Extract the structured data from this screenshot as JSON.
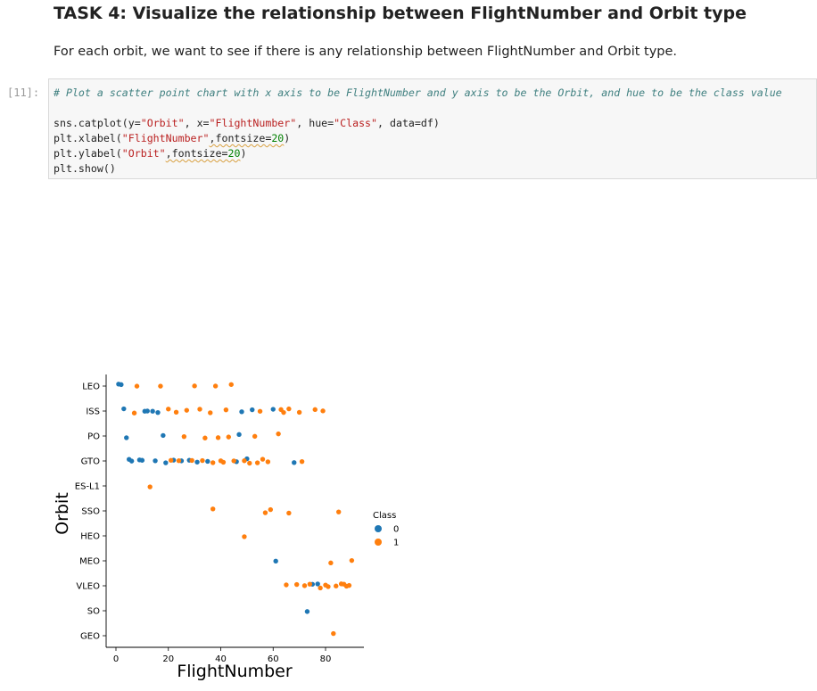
{
  "heading": "TASK 4: Visualize the relationship between FlightNumber and Orbit type",
  "paragraph": "For each orbit, we want to see if there is any relationship between FlightNumber and Orbit type.",
  "cell": {
    "prompt": "[11]:",
    "comment": "# Plot a scatter point chart with x axis to be FlightNumber and y axis to be the Orbit, and hue to be the class value",
    "line1": {
      "a": "sns.catplot(y=",
      "b": "\"Orbit\"",
      "c": ", x=",
      "d": "\"FlightNumber\"",
      "e": ", hue=",
      "f": "\"Class\"",
      "g": ", data=df)"
    },
    "line2": {
      "a": "plt.xlabel(",
      "b": "\"FlightNumber\"",
      "c": ",fontsize=",
      "d": "20",
      "e": ")"
    },
    "line3": {
      "a": "plt.ylabel(",
      "b": "\"Orbit\"",
      "c": ",fontsize=",
      "d": "20",
      "e": ")"
    },
    "line4": "plt.show()"
  },
  "colors": {
    "class0": "#1f77b4",
    "class1": "#ff7f0e"
  },
  "chart_data": {
    "type": "scatter",
    "xlabel": "FlightNumber",
    "ylabel": "Orbit",
    "xlim": [
      -4,
      94
    ],
    "xticks": [
      0,
      20,
      40,
      60,
      80
    ],
    "categories": [
      "LEO",
      "ISS",
      "PO",
      "GTO",
      "ES-L1",
      "SSO",
      "HEO",
      "MEO",
      "VLEO",
      "SO",
      "GEO"
    ],
    "legend": {
      "title": "Class",
      "entries": [
        "0",
        "1"
      ],
      "placement": "right"
    },
    "series": [
      {
        "name": "0",
        "points": [
          [
            "LEO",
            1
          ],
          [
            "LEO",
            2
          ],
          [
            "ISS",
            3
          ],
          [
            "ISS",
            11
          ],
          [
            "ISS",
            12
          ],
          [
            "ISS",
            14
          ],
          [
            "ISS",
            16
          ],
          [
            "ISS",
            48
          ],
          [
            "ISS",
            52
          ],
          [
            "ISS",
            60
          ],
          [
            "PO",
            4
          ],
          [
            "PO",
            18
          ],
          [
            "PO",
            47
          ],
          [
            "GTO",
            5
          ],
          [
            "GTO",
            6
          ],
          [
            "GTO",
            9
          ],
          [
            "GTO",
            10
          ],
          [
            "GTO",
            15
          ],
          [
            "GTO",
            19
          ],
          [
            "GTO",
            22
          ],
          [
            "GTO",
            25
          ],
          [
            "GTO",
            28
          ],
          [
            "GTO",
            31
          ],
          [
            "GTO",
            35
          ],
          [
            "GTO",
            46
          ],
          [
            "GTO",
            50
          ],
          [
            "GTO",
            68
          ],
          [
            "MEO",
            61
          ],
          [
            "VLEO",
            75
          ],
          [
            "VLEO",
            77
          ],
          [
            "SO",
            73
          ]
        ]
      },
      {
        "name": "1",
        "points": [
          [
            "LEO",
            8
          ],
          [
            "LEO",
            17
          ],
          [
            "LEO",
            30
          ],
          [
            "LEO",
            38
          ],
          [
            "LEO",
            44
          ],
          [
            "ISS",
            7
          ],
          [
            "ISS",
            20
          ],
          [
            "ISS",
            23
          ],
          [
            "ISS",
            27
          ],
          [
            "ISS",
            32
          ],
          [
            "ISS",
            36
          ],
          [
            "ISS",
            42
          ],
          [
            "ISS",
            55
          ],
          [
            "ISS",
            63
          ],
          [
            "ISS",
            64
          ],
          [
            "ISS",
            66
          ],
          [
            "ISS",
            70
          ],
          [
            "ISS",
            76
          ],
          [
            "ISS",
            79
          ],
          [
            "PO",
            26
          ],
          [
            "PO",
            34
          ],
          [
            "PO",
            39
          ],
          [
            "PO",
            43
          ],
          [
            "PO",
            53
          ],
          [
            "PO",
            62
          ],
          [
            "GTO",
            21
          ],
          [
            "GTO",
            24
          ],
          [
            "GTO",
            29
          ],
          [
            "GTO",
            33
          ],
          [
            "GTO",
            37
          ],
          [
            "GTO",
            40
          ],
          [
            "GTO",
            41
          ],
          [
            "GTO",
            45
          ],
          [
            "GTO",
            49
          ],
          [
            "GTO",
            51
          ],
          [
            "GTO",
            54
          ],
          [
            "GTO",
            56
          ],
          [
            "GTO",
            58
          ],
          [
            "GTO",
            71
          ],
          [
            "ES-L1",
            13
          ],
          [
            "SSO",
            37
          ],
          [
            "SSO",
            57
          ],
          [
            "SSO",
            59
          ],
          [
            "SSO",
            66
          ],
          [
            "SSO",
            85
          ],
          [
            "HEO",
            49
          ],
          [
            "MEO",
            82
          ],
          [
            "MEO",
            90
          ],
          [
            "VLEO",
            65
          ],
          [
            "VLEO",
            69
          ],
          [
            "VLEO",
            72
          ],
          [
            "VLEO",
            74
          ],
          [
            "VLEO",
            78
          ],
          [
            "VLEO",
            80
          ],
          [
            "VLEO",
            81
          ],
          [
            "VLEO",
            84
          ],
          [
            "VLEO",
            86
          ],
          [
            "VLEO",
            87
          ],
          [
            "VLEO",
            88
          ],
          [
            "VLEO",
            89
          ],
          [
            "GEO",
            83
          ]
        ]
      }
    ]
  }
}
